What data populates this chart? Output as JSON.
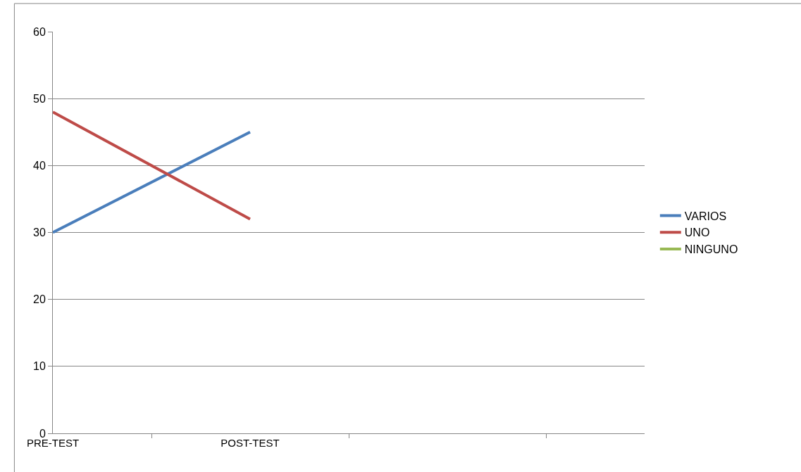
{
  "chart_data": {
    "type": "line",
    "categories": [
      "PRE-TEST",
      "POST-TEST",
      null,
      null
    ],
    "series": [
      {
        "name": "VARIOS",
        "color": "#4a7ebb",
        "values": [
          30,
          45,
          null,
          null
        ]
      },
      {
        "name": "UNO",
        "color": "#be4b48",
        "values": [
          48,
          32,
          null,
          null
        ]
      },
      {
        "name": "NINGUNO",
        "color": "#98b954",
        "values": [
          null,
          null,
          null,
          null
        ]
      }
    ],
    "ylim": [
      0,
      60
    ],
    "yticks": [
      0,
      10,
      20,
      30,
      40,
      50,
      60
    ],
    "grid": "y",
    "legend": "right",
    "marker": "none",
    "line_style": "solid"
  }
}
